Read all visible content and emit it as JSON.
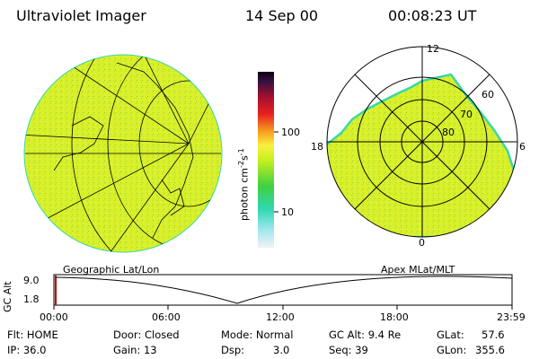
{
  "header": {
    "instrument": "Ultraviolet Imager",
    "date": "14 Sep 00",
    "time": "00:08:23 UT"
  },
  "colorbar": {
    "unit_label": "photon cm",
    "unit_exp1": "-2",
    "unit_s": "s",
    "unit_exp2": "-1",
    "tick_100": "100",
    "tick_10": "10"
  },
  "left_panel": {
    "caption": "Geographic Lat/Lon"
  },
  "right_panel": {
    "caption": "Apex MLat/MLT",
    "mlt_top": "12",
    "mlt_left": "18",
    "mlt_right": "6",
    "mlt_bottom": "0",
    "lat_60": "60",
    "lat_70": "70",
    "lat_80": "80"
  },
  "timeline": {
    "axis_label": "GC Alt",
    "y_top": "9.0",
    "y_bottom": "1.8",
    "ticks": [
      "00:00",
      "06:00",
      "12:00",
      "18:00",
      "23:59"
    ]
  },
  "status": {
    "flt": "Flt: HOME",
    "ip": "IP: 36.0",
    "door": "Door: Closed",
    "gain": "Gain: 13",
    "mode": "Mode: Normal",
    "dsp_label": "Dsp:",
    "dsp_value": "3.0",
    "gcalt": "GC Alt: 9.4 Re",
    "seq": "Seq: 39",
    "glat_label": "GLat:",
    "glat_value": "57.6",
    "glon_label": "GLon:",
    "glon_value": "355.6"
  },
  "colors": {
    "aurora_fill": "#d8f02a",
    "aurora_edge": "#38d8a8",
    "text": "#000000"
  }
}
